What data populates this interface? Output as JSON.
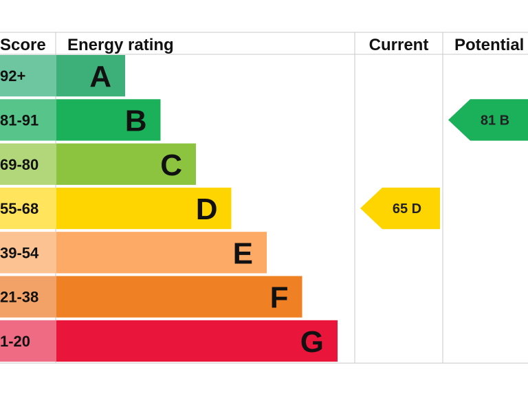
{
  "chart_data": {
    "type": "bar",
    "headers": {
      "score": "Score",
      "rating": "Energy rating",
      "current": "Current",
      "potential": "Potential"
    },
    "bands": [
      {
        "score": "92+",
        "letter": "A",
        "color": "#3db07a",
        "score_bg": "#6ec6a0"
      },
      {
        "score": "81-91",
        "letter": "B",
        "color": "#1ab15a",
        "score_bg": "#57c58a"
      },
      {
        "score": "69-80",
        "letter": "C",
        "color": "#8cc43f",
        "score_bg": "#b2d77a"
      },
      {
        "score": "55-68",
        "letter": "D",
        "color": "#ffd500",
        "score_bg": "#ffe45c"
      },
      {
        "score": "39-54",
        "letter": "E",
        "color": "#fcaa65",
        "score_bg": "#fcc291"
      },
      {
        "score": "21-38",
        "letter": "F",
        "color": "#ef8023",
        "score_bg": "#f3a267"
      },
      {
        "score": "1-20",
        "letter": "G",
        "color": "#e9153b",
        "score_bg": "#ef6b83"
      }
    ],
    "current": {
      "value": 65,
      "letter": "D",
      "color": "#ffd500"
    },
    "potential": {
      "value": 81,
      "letter": "B",
      "color": "#1ab15a"
    }
  }
}
